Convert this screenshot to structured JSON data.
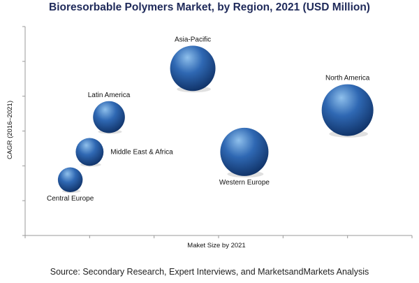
{
  "chart_data": {
    "type": "bubble",
    "title": "Bioresorbable Polymers Market, by Region, 2021 (USD Million)",
    "xlabel": "Maket Size by 2021",
    "ylabel": "CAGR (2016–2021)",
    "grid": false,
    "legend": "none",
    "xlim": [
      0,
      6
    ],
    "ylim": [
      0,
      6
    ],
    "points": [
      {
        "label": "Asia-Pacific",
        "x": 2.6,
        "y": 4.8,
        "size": 7.7,
        "label_pos": "above"
      },
      {
        "label": "North America",
        "x": 5.0,
        "y": 3.6,
        "size": 10.0,
        "label_pos": "above"
      },
      {
        "label": "Latin America",
        "x": 1.3,
        "y": 3.4,
        "size": 3.8,
        "label_pos": "above"
      },
      {
        "label": "Western Europe",
        "x": 3.4,
        "y": 2.4,
        "size": 8.7,
        "label_pos": "below"
      },
      {
        "label": "Middle East & Africa",
        "x": 1.0,
        "y": 2.4,
        "size": 2.9,
        "label_pos": "right"
      },
      {
        "label": "Central Europe",
        "x": 0.7,
        "y": 1.6,
        "size": 2.3,
        "label_pos": "below"
      }
    ]
  },
  "colors": {
    "bubble_light": "#8fc0ec",
    "bubble_mid": "#2f68b3",
    "bubble_dark": "#0e2f63",
    "axis": "#9a9a9a",
    "title": "#1f2a5a"
  },
  "footer": {
    "source": "Source: Secondary Research, Expert Interviews, and MarketsandMarkets Analysis"
  }
}
